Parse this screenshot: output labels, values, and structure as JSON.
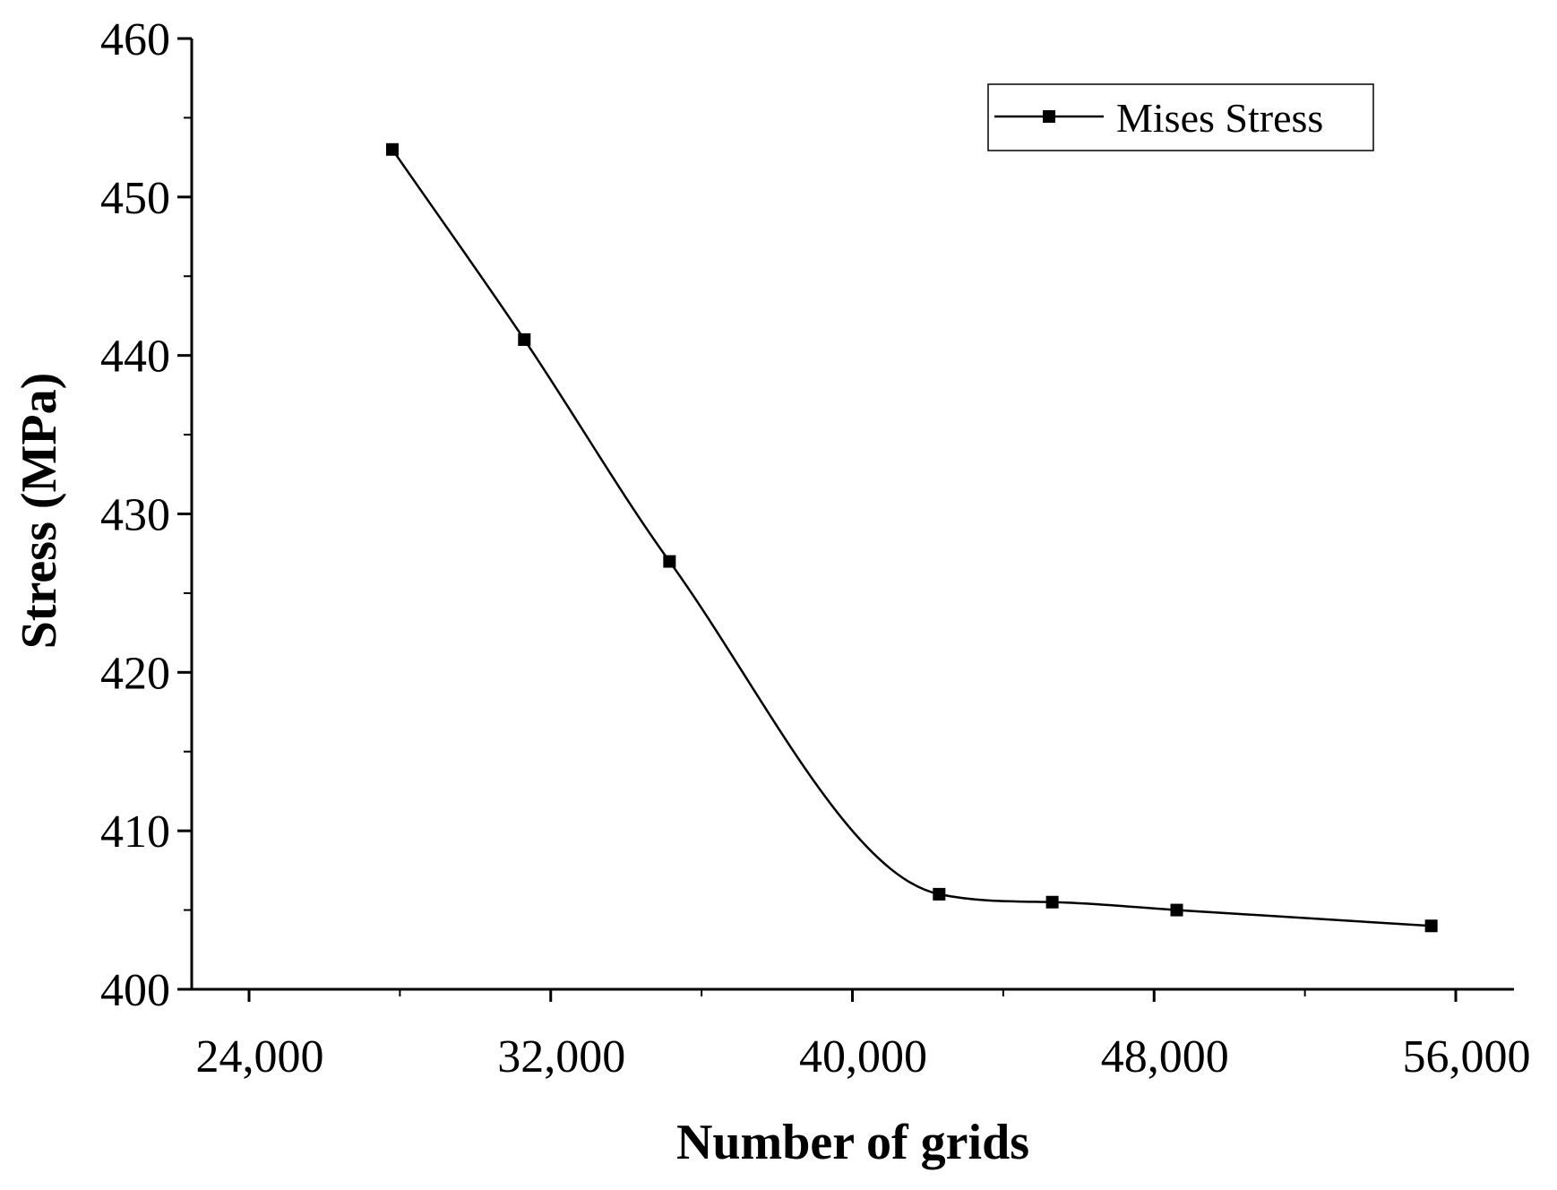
{
  "chart_data": {
    "type": "line",
    "title": "",
    "xlabel": "Number of grids",
    "ylabel": "Stress (MPa)",
    "xlim": [
      22500,
      57000
    ],
    "ylim": [
      400,
      460
    ],
    "xticks": [
      24000,
      32000,
      40000,
      48000,
      56000
    ],
    "xtick_labels": [
      "24,000",
      "32,000",
      "40,000",
      "48,000",
      "56,000"
    ],
    "yticks": [
      400,
      410,
      420,
      430,
      440,
      450,
      460
    ],
    "ytick_labels": [
      "400",
      "410",
      "420",
      "430",
      "440",
      "450",
      "460"
    ],
    "grid": false,
    "legend_position": "top-right",
    "series": [
      {
        "name": "Mises Stress",
        "color": "#000000",
        "marker": "square",
        "smooth": true,
        "x": [
          27800,
          31300,
          35150,
          42300,
          45300,
          48600,
          55350
        ],
        "y": [
          453,
          441,
          427,
          406,
          405.5,
          405,
          404
        ]
      }
    ]
  }
}
